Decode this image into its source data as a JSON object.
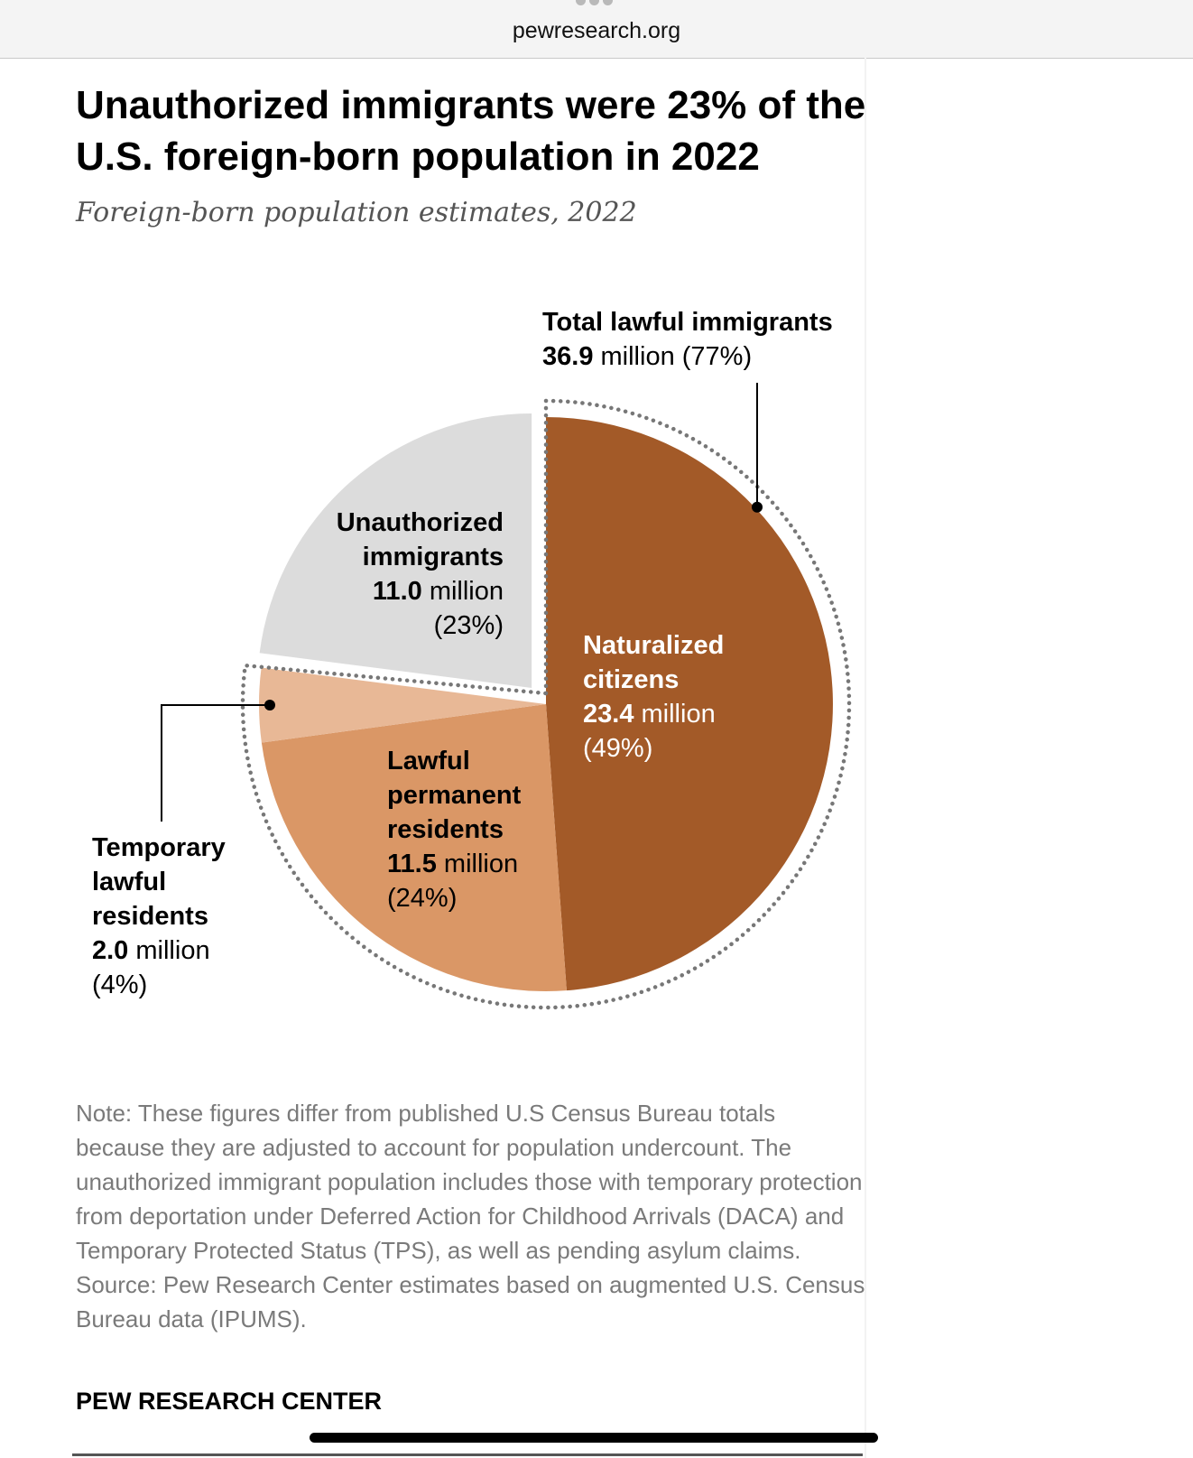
{
  "browser": {
    "url": "pewresearch.org"
  },
  "colors": {
    "naturalized": "#A35A28",
    "lawful_permanent": "#DA9766",
    "temporary": "#E8B896",
    "unauthorized": "#DCDCDC",
    "bracket": "#777777"
  },
  "chart_data": {
    "type": "pie",
    "title": "Unauthorized immigrants were 23% of the U.S. foreign-born population in 2022",
    "subtitle": "Foreign-born population estimates, 2022",
    "unit": "million",
    "slices": [
      {
        "name_lines": [
          "Naturalized",
          "citizens"
        ],
        "value": 23.4,
        "value_text": "23.4",
        "pct": 49,
        "pct_text": "(49%)",
        "lawful": true
      },
      {
        "name_lines": [
          "Lawful",
          "permanent",
          "residents"
        ],
        "value": 11.5,
        "value_text": "11.5",
        "pct": 24,
        "pct_text": "(24%)",
        "lawful": true
      },
      {
        "name_lines": [
          "Temporary",
          "lawful",
          "residents"
        ],
        "value": 2.0,
        "value_text": "2.0",
        "pct": 4,
        "pct_text": "(4%)",
        "lawful": true
      },
      {
        "name_lines": [
          "Unauthorized",
          "immigrants"
        ],
        "value": 11.0,
        "value_text": "11.0",
        "pct": 23,
        "pct_text": "(23%)",
        "lawful": false
      }
    ],
    "group": {
      "name": "Total lawful immigrants",
      "value": 36.9,
      "value_text": "36.9",
      "unit": "million",
      "pct_text": "(77%)"
    }
  },
  "note": "Note: These figures differ from published U.S Census Bureau totals because they are adjusted to account for population undercount. The unauthorized immigrant population includes those with temporary protection from deportation under Deferred Action for Childhood Arrivals (DACA) and Temporary Protected Status (TPS), as well as pending asylum claims.",
  "source": "Source: Pew Research Center estimates based on augmented U.S. Census Bureau data (IPUMS).",
  "brand": "PEW RESEARCH CENTER"
}
